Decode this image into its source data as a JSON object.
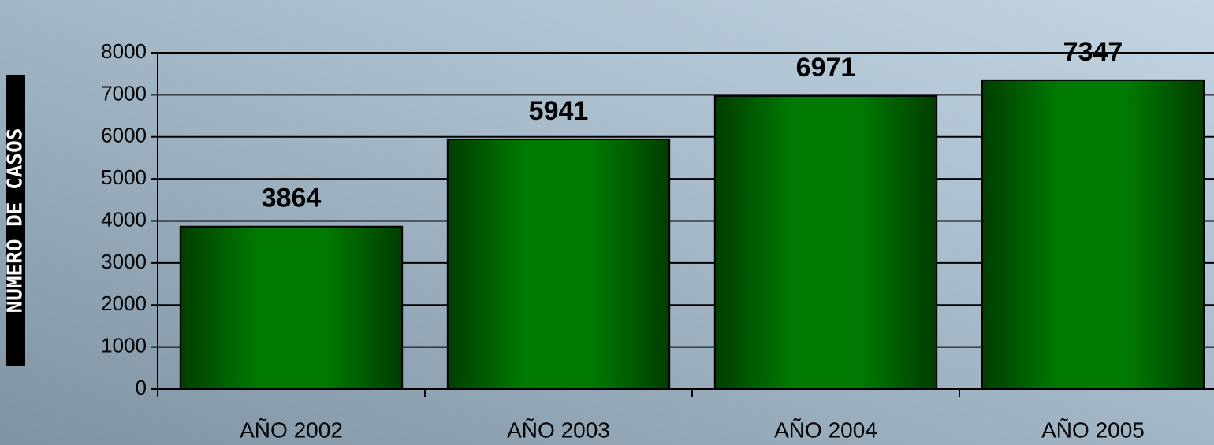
{
  "chart_data": {
    "type": "bar",
    "y_label": "NUMERO DE CASOS",
    "categories": [
      "AÑO 2002",
      "AÑO 2003",
      "AÑO 2004",
      "AÑO 2005"
    ],
    "values": [
      3864,
      5941,
      6971,
      7347
    ],
    "color": "#007a00",
    "ylim": [
      0,
      8000
    ],
    "yticks": [
      0,
      1000,
      2000,
      3000,
      4000,
      5000,
      6000,
      7000,
      8000
    ],
    "grid": true
  }
}
